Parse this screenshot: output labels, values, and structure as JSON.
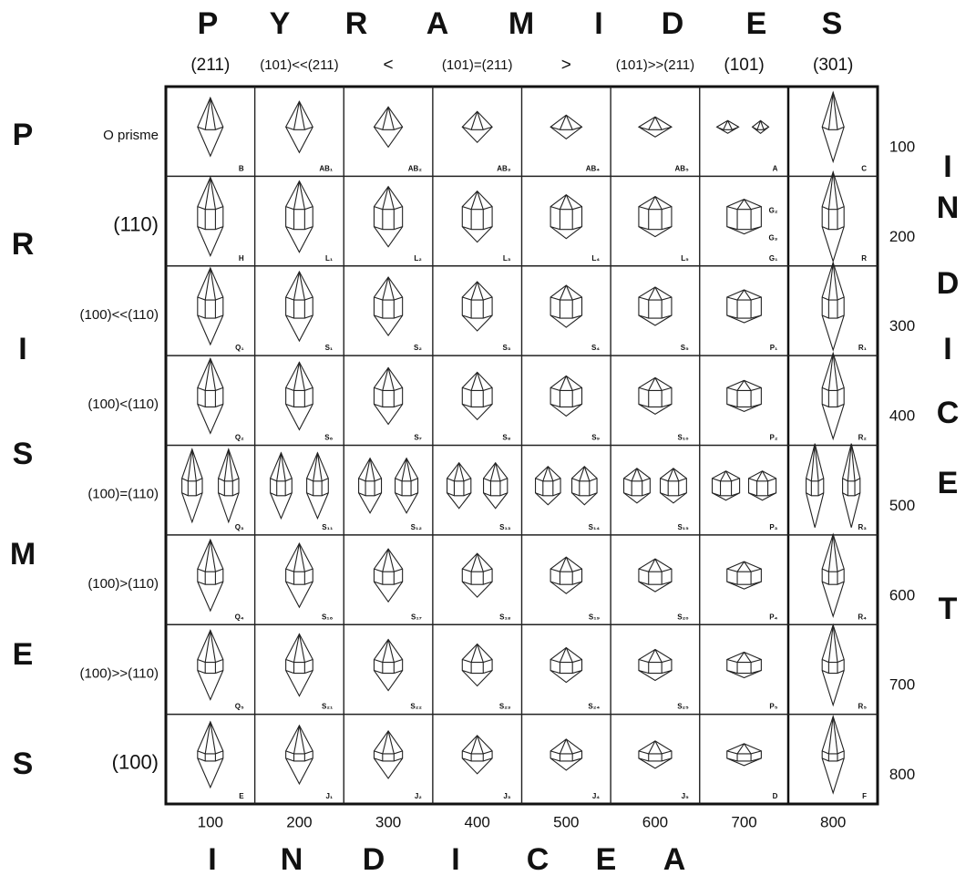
{
  "title_letters": [
    "P",
    "Y",
    "R",
    "A",
    "M",
    "I",
    "D",
    "E",
    "S"
  ],
  "column_headers": [
    "(211)",
    "(101)<<(211)",
    "<",
    "(101)=(211)",
    ">",
    "(101)>>(211)",
    "(101)",
    "(301)"
  ],
  "left_letters": [
    "P",
    "R",
    "I",
    "S",
    "M",
    "E",
    "S"
  ],
  "row_headers": [
    "O prisme",
    "(110)",
    "(100)<<(110)",
    "(100)<(110)",
    "(100)=(110)",
    "(100)>(110)",
    "(100)>>(110)",
    "(100)"
  ],
  "right_indices": [
    "100",
    "200",
    "300",
    "400",
    "500",
    "600",
    "700",
    "800"
  ],
  "right_letters": [
    "I",
    "N",
    "D",
    "I",
    "C",
    "E",
    "T"
  ],
  "bottom_indices": [
    "100",
    "200",
    "300",
    "400",
    "500",
    "600",
    "700",
    "800"
  ],
  "bottom_letters": [
    "I",
    "N",
    "D",
    "I",
    "C",
    "E",
    "A"
  ],
  "cells": [
    [
      [
        "B"
      ],
      [
        "AB₁"
      ],
      [
        "AB₂"
      ],
      [
        "AB₃"
      ],
      [
        "AB₄"
      ],
      [
        "AB₅"
      ],
      [
        "A"
      ],
      [
        "C"
      ]
    ],
    [
      [
        "H"
      ],
      [
        "L₁"
      ],
      [
        "L₂"
      ],
      [
        "L₃"
      ],
      [
        "L₄"
      ],
      [
        "L₅"
      ],
      [
        "G₁",
        "G₂",
        "G₃"
      ],
      [
        "R"
      ]
    ],
    [
      [
        "Q₁"
      ],
      [
        "S₁"
      ],
      [
        "S₂"
      ],
      [
        "S₃"
      ],
      [
        "S₄"
      ],
      [
        "S₅"
      ],
      [
        "P₁"
      ],
      [
        "R₁"
      ]
    ],
    [
      [
        "Q₂"
      ],
      [
        "S₆"
      ],
      [
        "S₇"
      ],
      [
        "S₈"
      ],
      [
        "S₉"
      ],
      [
        "S₁₀"
      ],
      [
        "P₂"
      ],
      [
        "R₂"
      ]
    ],
    [
      [
        "Q₃"
      ],
      [
        "S₁₁"
      ],
      [
        "S₁₂"
      ],
      [
        "S₁₃"
      ],
      [
        "S₁₄"
      ],
      [
        "S₁₅"
      ],
      [
        "P₃"
      ],
      [
        "R₃"
      ]
    ],
    [
      [
        "Q₄"
      ],
      [
        "S₁₆"
      ],
      [
        "S₁₇"
      ],
      [
        "S₁₈"
      ],
      [
        "S₁₉"
      ],
      [
        "S₂₀"
      ],
      [
        "P₄"
      ],
      [
        "R₄"
      ]
    ],
    [
      [
        "Q₅"
      ],
      [
        "S₂₁"
      ],
      [
        "S₂₂"
      ],
      [
        "S₂₃"
      ],
      [
        "S₂₄"
      ],
      [
        "S₂₅"
      ],
      [
        "P₅"
      ],
      [
        "R₅"
      ]
    ],
    [
      [
        "E"
      ],
      [
        "J₁"
      ],
      [
        "J₂"
      ],
      [
        "J₃"
      ],
      [
        "J₄"
      ],
      [
        "J₅"
      ],
      [
        "D"
      ],
      [
        "F"
      ]
    ]
  ]
}
